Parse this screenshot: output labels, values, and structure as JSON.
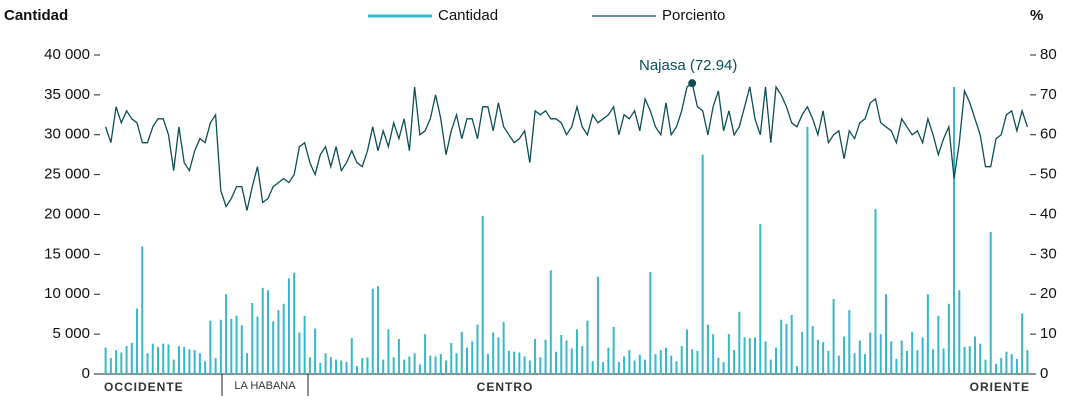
{
  "chart_data": {
    "type": "bar_line",
    "y_label": "Cantidad",
    "y2_label": "%",
    "regions": [
      "OCCIDENTE",
      "LA HABANA",
      "CENTRO",
      "ORIENTE"
    ],
    "annotation": {
      "text": "Najasa (72.94)",
      "value": 72.94
    },
    "ylim": [
      0,
      40000
    ],
    "yticks": [
      0,
      {
        "value": 5000,
        "label": "5 000"
      },
      {
        "value": 10000,
        "label": "10 000"
      },
      {
        "value": 15000,
        "label": "15 000"
      },
      {
        "value": 20000,
        "label": "20 000"
      },
      {
        "value": 25000,
        "label": "25 000"
      },
      {
        "value": 30000,
        "label": "30 000"
      },
      {
        "value": 35000,
        "label": "35 000"
      },
      {
        "value": 40000,
        "label": "40 000"
      }
    ],
    "y2lim": [
      0,
      80
    ],
    "y2ticks": [
      0,
      10,
      20,
      30,
      40,
      50,
      60,
      70,
      80
    ],
    "series": [
      {
        "name": "Cantidad",
        "color": "#35b8c8",
        "type": "bar",
        "values": [
          3300,
          2000,
          3000,
          2700,
          3500,
          3900,
          8200,
          16000,
          2600,
          3800,
          3400,
          3800,
          3700,
          1800,
          3500,
          3400,
          3100,
          3000,
          2600,
          1600,
          6700,
          2000,
          6800,
          10000,
          6900,
          7300,
          6100,
          2600,
          8900,
          7200,
          10800,
          10500,
          6600,
          8000,
          8800,
          12000,
          12700,
          5200,
          7300,
          2100,
          5700,
          1400,
          2600,
          2100,
          1800,
          1700,
          1500,
          4500,
          1000,
          2000,
          2100,
          10700,
          11000,
          1800,
          5600,
          2100,
          4400,
          1800,
          2200,
          2600,
          1200,
          5000,
          2300,
          2200,
          2500,
          1700,
          3900,
          2600,
          5300,
          3300,
          4100,
          6200,
          19800,
          2500,
          5200,
          4600,
          6500,
          2900,
          2800,
          2700,
          2200,
          1700,
          4400,
          2100,
          4300,
          13000,
          2800,
          4900,
          4200,
          3200,
          5600,
          3500,
          6700,
          1600,
          12200,
          1500,
          3300,
          5900,
          1500,
          2200,
          3000,
          1700,
          2400,
          1800,
          12800,
          2500,
          3000,
          3300,
          2300,
          1600,
          3500,
          5600,
          3100,
          2900,
          27500,
          6200,
          5000,
          2000,
          1500,
          5000,
          3000,
          7800,
          4600,
          4500,
          4600,
          18800,
          4100,
          1800,
          3300,
          6800,
          6300,
          7400,
          1000,
          5300,
          31000,
          6000,
          4300,
          4000,
          2900,
          9400,
          2300,
          4700,
          8000,
          2600,
          4200,
          2500,
          5200,
          20700,
          5000,
          10000,
          4100,
          1900,
          4200,
          2900,
          5300,
          3000,
          4600,
          10000,
          3100,
          7300,
          3200,
          8800,
          36000,
          10500,
          3400,
          3500,
          4700,
          3800,
          1800,
          17800,
          1300,
          2000,
          2800,
          2500,
          1900,
          7600,
          3000
        ]
      },
      {
        "name": "Porciento",
        "color": "#0d4f55",
        "type": "line",
        "axis": "y2",
        "values": [
          62,
          58,
          67,
          63,
          66,
          64,
          63,
          58,
          58,
          62,
          64,
          64,
          60,
          51,
          62,
          53,
          51,
          56,
          59,
          58,
          63,
          65,
          46,
          42,
          44,
          47,
          47,
          41,
          47,
          52,
          43,
          44,
          47,
          48,
          49,
          48,
          50,
          57,
          58,
          53,
          50,
          55,
          57,
          52,
          57,
          51,
          53,
          56,
          53,
          52,
          56,
          62,
          56,
          61,
          57,
          63,
          59,
          64,
          56,
          72,
          60,
          61,
          64,
          70,
          64,
          55,
          61,
          65,
          59,
          64,
          64,
          59,
          67,
          67,
          61,
          68,
          62,
          60,
          58,
          59,
          61,
          53,
          66,
          65,
          66,
          64,
          64,
          63,
          60,
          62,
          67,
          62,
          60,
          65,
          63,
          64,
          65,
          67,
          60,
          65,
          64,
          66,
          61,
          69,
          66,
          62,
          60,
          68,
          60,
          62,
          66,
          72,
          72.94,
          67,
          66,
          60,
          67,
          71,
          61,
          66,
          60,
          62,
          67,
          72,
          64,
          60,
          72,
          58,
          72,
          70,
          67,
          63,
          62,
          65,
          67,
          64,
          60,
          66,
          58,
          60,
          61,
          54,
          61,
          59,
          63,
          64,
          68,
          69,
          63,
          62,
          61,
          58,
          64,
          62,
          60,
          61,
          58,
          64,
          60,
          55,
          59,
          62,
          49,
          58,
          71,
          68,
          64,
          60,
          52,
          52,
          59,
          60,
          65,
          66,
          61,
          66,
          62
        ]
      }
    ]
  }
}
